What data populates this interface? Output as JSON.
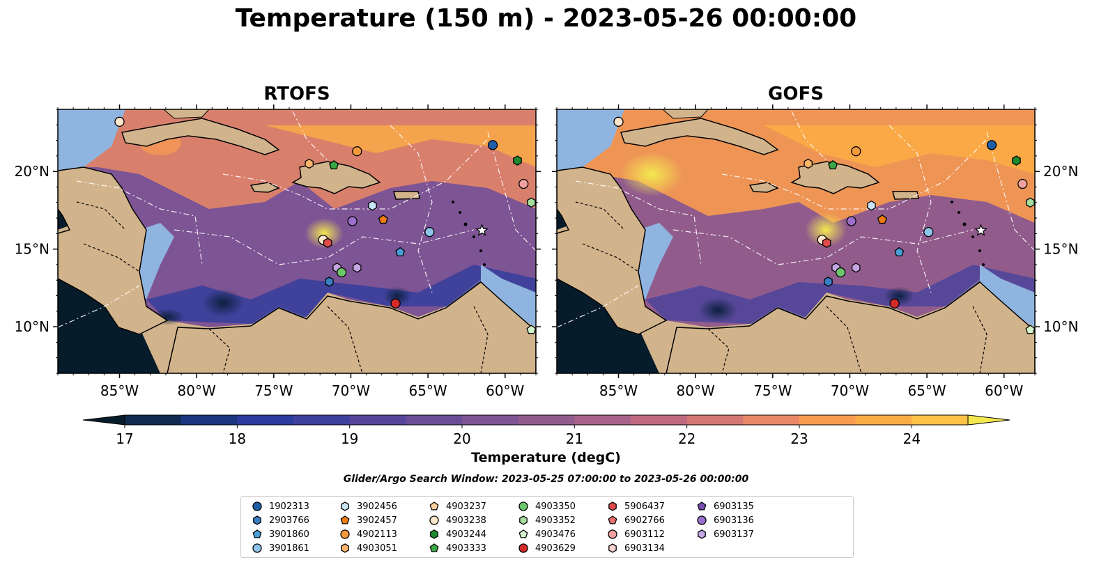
{
  "title": "Temperature (150 m) - 2023-05-26 00:00:00",
  "panels": [
    {
      "title": "RTOFS"
    },
    {
      "title": "GOFS"
    }
  ],
  "chart_data": {
    "type": "heatmap",
    "title": "Temperature (150 m) - 2023-05-26 00:00:00",
    "longitude_range": [
      -89,
      -58
    ],
    "latitude_range": [
      7,
      24
    ],
    "x_ticks": [
      "85°W",
      "80°W",
      "75°W",
      "70°W",
      "65°W",
      "60°W"
    ],
    "y_ticks": [
      "20°N",
      "15°N",
      "10°N"
    ],
    "colorbar": {
      "label": "Temperature (degC)",
      "min": 17,
      "max": 24.5,
      "step": 0.5,
      "ticks": [
        "17",
        "18",
        "19",
        "20",
        "21",
        "22",
        "23",
        "24"
      ],
      "extend": "both",
      "colors": [
        "#071c2a",
        "#102a50",
        "#1b3580",
        "#2b3b9e",
        "#3f3f9e",
        "#55459a",
        "#6a4d96",
        "#7d5494",
        "#915c8c",
        "#a8628a",
        "#c06a80",
        "#d47672",
        "#e98866",
        "#f89b50",
        "#fbab45",
        "#fdc246",
        "#f4e850"
      ]
    },
    "panels": [
      "RTOFS",
      "GOFS"
    ]
  },
  "search_window": "Glider/Argo Search Window: 2023-05-25 07:00:00 to 2023-05-26 00:00:00",
  "floats": [
    {
      "id": "1902313",
      "marker": "circle",
      "color": "#1f5fa8"
    },
    {
      "id": "2903766",
      "marker": "hexagon",
      "color": "#3a7ec2"
    },
    {
      "id": "3901860",
      "marker": "pentagon",
      "color": "#4a9fd8"
    },
    {
      "id": "3901861",
      "marker": "circle",
      "color": "#8cc4ea"
    },
    {
      "id": "3902456",
      "marker": "hexagon",
      "color": "#c8e4f6"
    },
    {
      "id": "3902457",
      "marker": "pentagon",
      "color": "#f07b10"
    },
    {
      "id": "4902113",
      "marker": "circle",
      "color": "#f59a3a"
    },
    {
      "id": "4903051",
      "marker": "hexagon",
      "color": "#fbb66c"
    },
    {
      "id": "4903237",
      "marker": "pentagon",
      "color": "#fdd09e"
    },
    {
      "id": "4903238",
      "marker": "circle",
      "color": "#fde6cc"
    },
    {
      "id": "4903244",
      "marker": "hexagon",
      "color": "#1e8a2e"
    },
    {
      "id": "4903333",
      "marker": "pentagon",
      "color": "#3aa845"
    },
    {
      "id": "4903350",
      "marker": "circle",
      "color": "#6cc66a"
    },
    {
      "id": "4903352",
      "marker": "hexagon",
      "color": "#a6dea0"
    },
    {
      "id": "4903476",
      "marker": "pentagon",
      "color": "#d4f2cc"
    },
    {
      "id": "4903629",
      "marker": "circle",
      "color": "#d42a2a"
    },
    {
      "id": "5906437",
      "marker": "hexagon",
      "color": "#e04a4a"
    },
    {
      "id": "6902766",
      "marker": "pentagon",
      "color": "#ea7070"
    },
    {
      "id": "6903112",
      "marker": "circle",
      "color": "#f2a0a0"
    },
    {
      "id": "6903134",
      "marker": "hexagon",
      "color": "#fad2d2"
    },
    {
      "id": "6903135",
      "marker": "pentagon",
      "color": "#7a4cb4"
    },
    {
      "id": "6903136",
      "marker": "circle",
      "color": "#9c70cc"
    },
    {
      "id": "6903137",
      "marker": "hexagon",
      "color": "#c4a6e2"
    }
  ],
  "float_positions": [
    {
      "lon": -85.0,
      "lat": 23.2,
      "marker": "circle",
      "color": "#fde6cc"
    },
    {
      "lon": -60.8,
      "lat": 21.7,
      "marker": "circle",
      "color": "#1f5fa8"
    },
    {
      "lon": -59.2,
      "lat": 20.7,
      "marker": "hexagon",
      "color": "#1e8a2e"
    },
    {
      "lon": -69.6,
      "lat": 21.3,
      "marker": "circle",
      "color": "#f59a3a"
    },
    {
      "lon": -72.7,
      "lat": 20.5,
      "marker": "hexagon",
      "color": "#fbb66c"
    },
    {
      "lon": -71.1,
      "lat": 20.4,
      "marker": "pentagon",
      "color": "#3aa845"
    },
    {
      "lon": -58.8,
      "lat": 19.2,
      "marker": "circle",
      "color": "#f2a0a0"
    },
    {
      "lon": -58.3,
      "lat": 18.0,
      "marker": "hexagon",
      "color": "#a6dea0"
    },
    {
      "lon": -68.6,
      "lat": 17.8,
      "marker": "hexagon",
      "color": "#c8e4f6"
    },
    {
      "lon": -69.9,
      "lat": 16.8,
      "marker": "circle",
      "color": "#9c70cc"
    },
    {
      "lon": -67.9,
      "lat": 16.9,
      "marker": "pentagon",
      "color": "#f07b10"
    },
    {
      "lon": -64.9,
      "lat": 16.1,
      "marker": "circle",
      "color": "#8cc4ea"
    },
    {
      "lon": -61.5,
      "lat": 16.2,
      "marker": "star",
      "color": "#ffffff"
    },
    {
      "lon": -71.8,
      "lat": 15.6,
      "marker": "circle",
      "color": "#fde6cc"
    },
    {
      "lon": -71.5,
      "lat": 15.4,
      "marker": "hexagon",
      "color": "#e04a4a"
    },
    {
      "lon": -66.8,
      "lat": 14.8,
      "marker": "pentagon",
      "color": "#4a9fd8"
    },
    {
      "lon": -70.9,
      "lat": 13.8,
      "marker": "hexagon",
      "color": "#c4a6e2"
    },
    {
      "lon": -69.6,
      "lat": 13.8,
      "marker": "hexagon",
      "color": "#c4a6e2"
    },
    {
      "lon": -70.6,
      "lat": 13.5,
      "marker": "circle",
      "color": "#6cc66a"
    },
    {
      "lon": -71.4,
      "lat": 12.9,
      "marker": "hexagon",
      "color": "#3a7ec2"
    },
    {
      "lon": -67.1,
      "lat": 11.5,
      "marker": "circle",
      "color": "#d42a2a"
    },
    {
      "lon": -58.3,
      "lat": 9.8,
      "marker": "pentagon",
      "color": "#d4f2cc"
    }
  ]
}
